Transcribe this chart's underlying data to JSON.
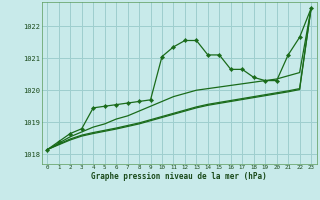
{
  "background_color": "#c8eaea",
  "grid_color": "#9ecece",
  "line_color": "#1a6b1a",
  "ylim": [
    1017.7,
    1022.75
  ],
  "xlim": [
    -0.5,
    23.5
  ],
  "yticks": [
    1018,
    1019,
    1020,
    1021,
    1022
  ],
  "xticks": [
    0,
    1,
    2,
    3,
    4,
    5,
    6,
    7,
    8,
    9,
    10,
    11,
    12,
    13,
    14,
    15,
    16,
    17,
    18,
    19,
    20,
    21,
    22,
    23
  ],
  "xlabel": "Graphe pression niveau de la mer (hPa)",
  "series1": [
    1018.15,
    1018.4,
    1018.65,
    1018.8,
    1019.45,
    1019.5,
    1019.55,
    1019.6,
    1019.65,
    1019.7,
    1021.05,
    1021.35,
    1021.55,
    1021.55,
    1021.1,
    1021.1,
    1020.65,
    1020.65,
    1020.4,
    1020.3,
    1020.3,
    1021.1,
    1021.65,
    1022.55
  ],
  "series2": [
    1018.15,
    1018.35,
    1018.55,
    1018.7,
    1018.85,
    1018.95,
    1019.1,
    1019.2,
    1019.35,
    1019.5,
    1019.65,
    1019.8,
    1019.9,
    1020.0,
    1020.05,
    1020.1,
    1020.15,
    1020.2,
    1020.25,
    1020.3,
    1020.35,
    1020.45,
    1020.55,
    1022.55
  ],
  "series3": [
    1018.15,
    1018.32,
    1018.48,
    1018.6,
    1018.68,
    1018.75,
    1018.82,
    1018.9,
    1018.98,
    1019.08,
    1019.18,
    1019.28,
    1019.38,
    1019.48,
    1019.56,
    1019.62,
    1019.68,
    1019.74,
    1019.8,
    1019.86,
    1019.92,
    1019.98,
    1020.05,
    1022.55
  ],
  "series4": [
    1018.15,
    1018.3,
    1018.45,
    1018.57,
    1018.65,
    1018.72,
    1018.79,
    1018.87,
    1018.95,
    1019.05,
    1019.15,
    1019.25,
    1019.35,
    1019.45,
    1019.53,
    1019.59,
    1019.65,
    1019.71,
    1019.77,
    1019.83,
    1019.89,
    1019.95,
    1020.02,
    1022.55
  ]
}
